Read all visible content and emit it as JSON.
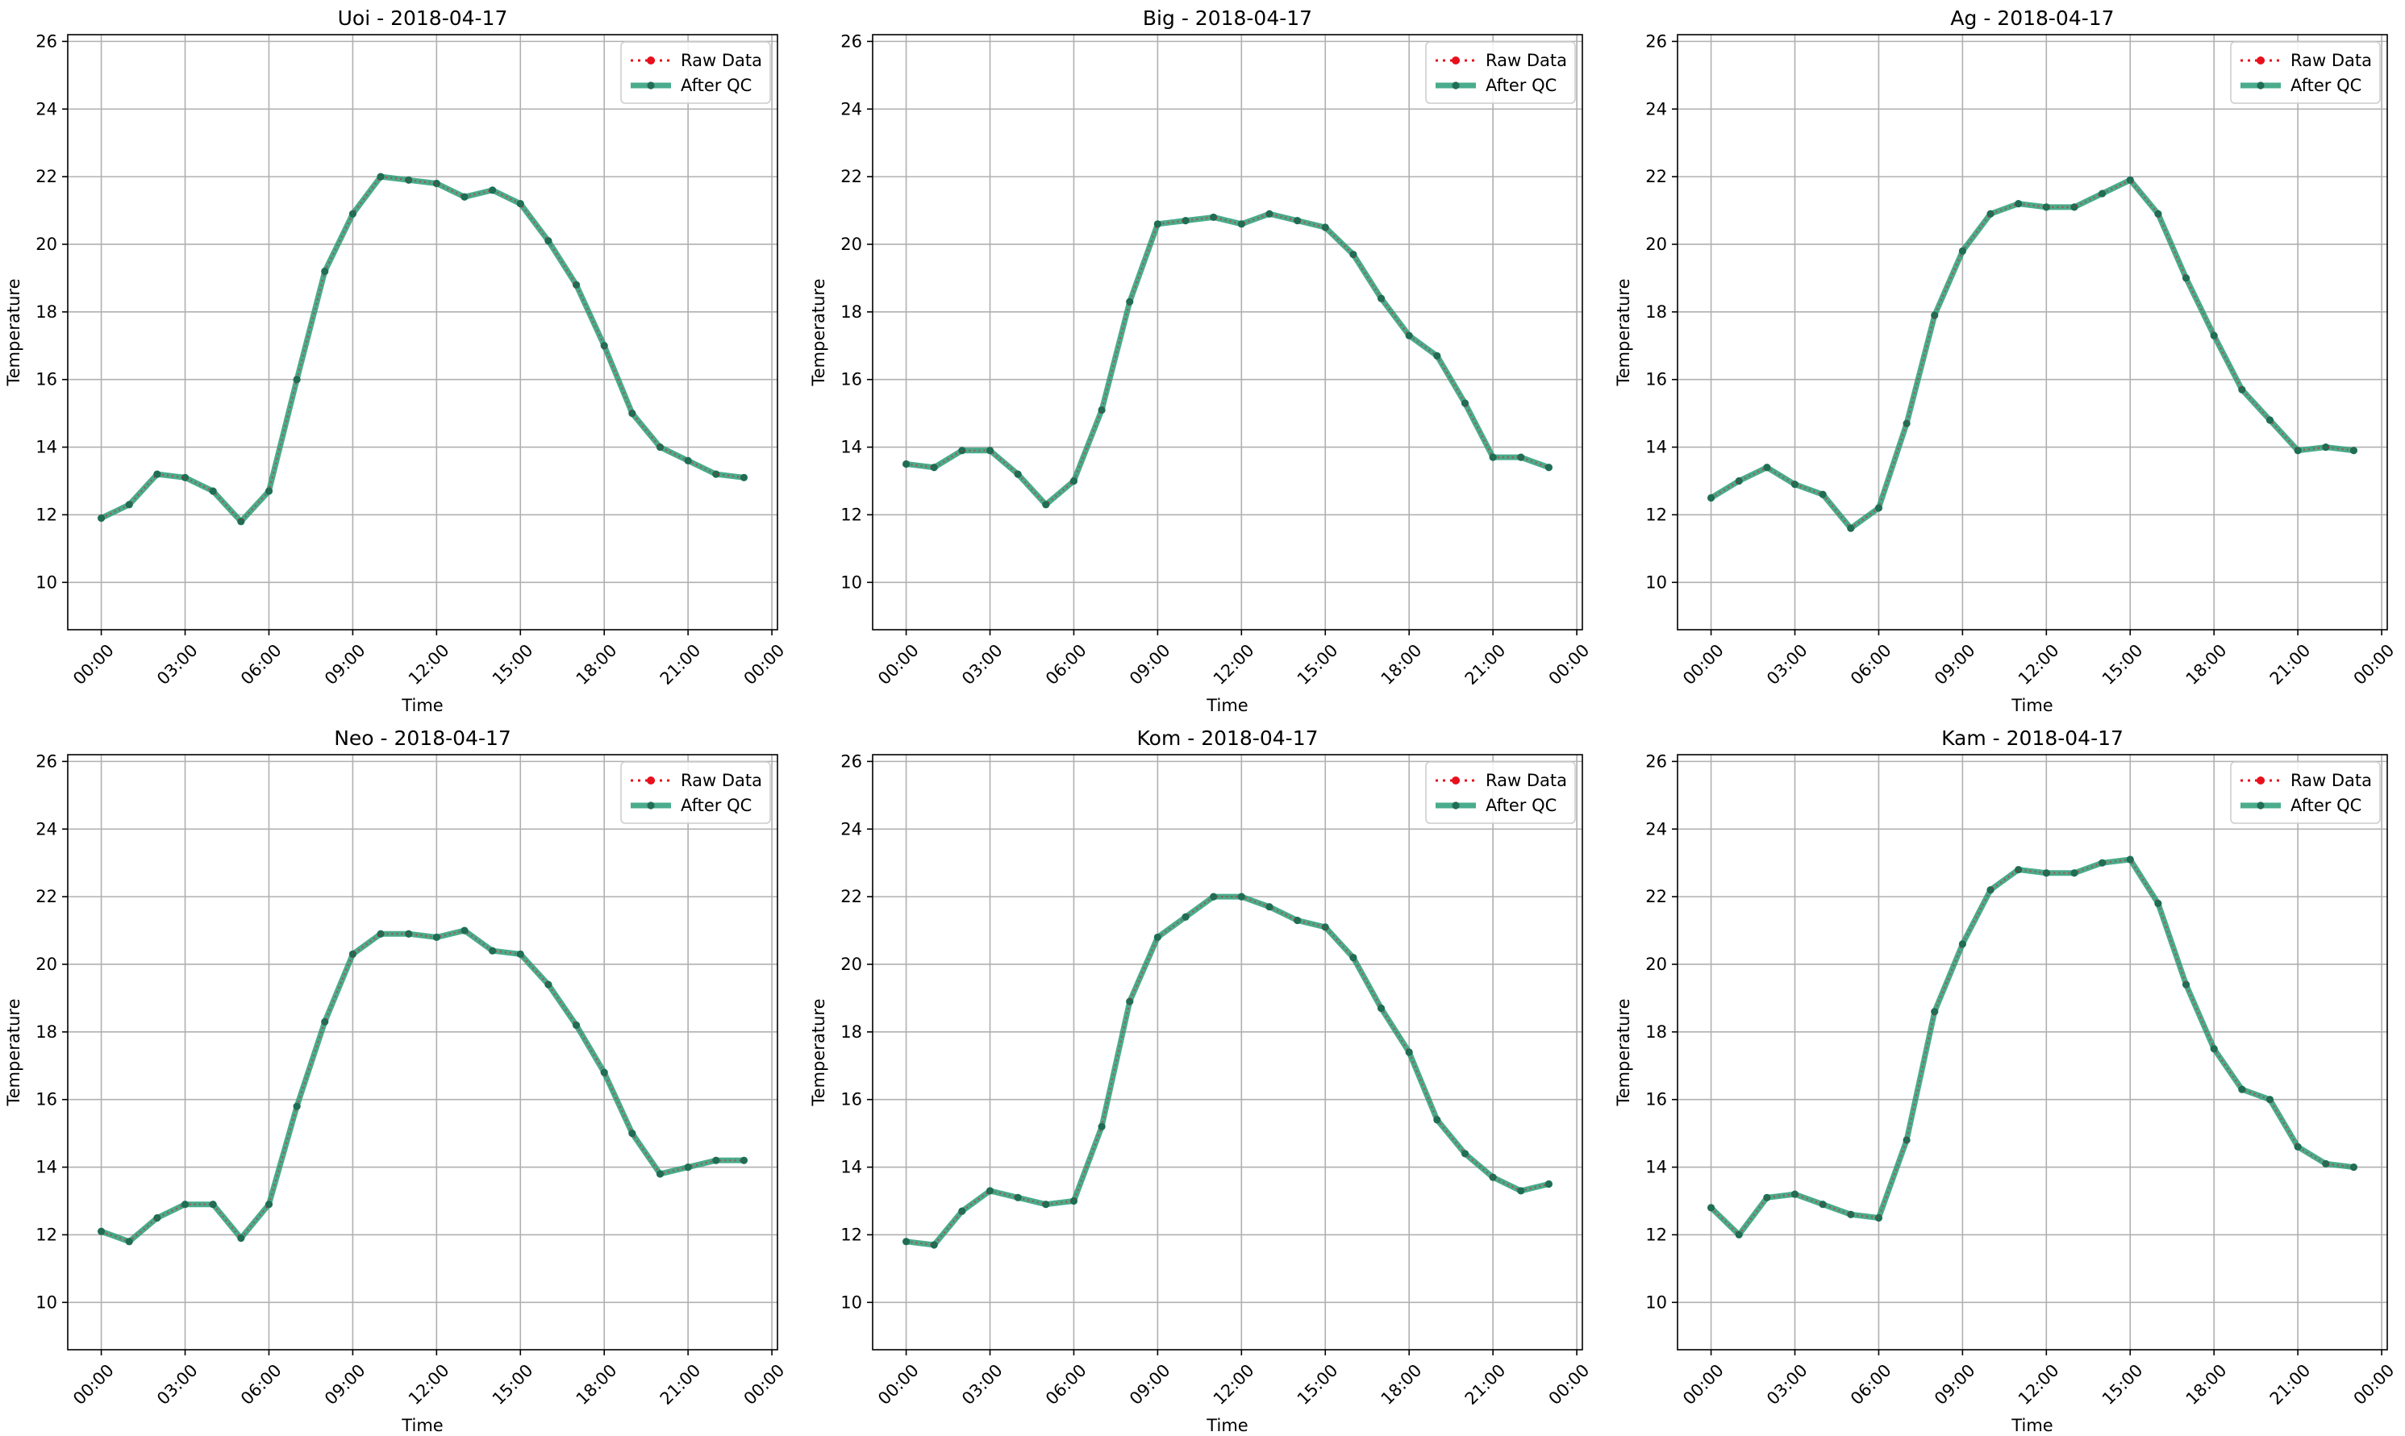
{
  "chart_data": [
    {
      "type": "line",
      "title": "Uoi - 2018-04-17",
      "xlabel": "Time",
      "ylabel": "Temperature",
      "ylim": [
        8.6,
        26.2
      ],
      "yticks": [
        10,
        12,
        14,
        16,
        18,
        20,
        22,
        24,
        26
      ],
      "xlim": [
        -1.2,
        24.2
      ],
      "xticks": [
        0,
        3,
        6,
        9,
        12,
        15,
        18,
        21,
        24
      ],
      "xtick_labels": [
        "00:00",
        "03:00",
        "06:00",
        "09:00",
        "12:00",
        "15:00",
        "18:00",
        "21:00",
        "00:00"
      ],
      "grid": true,
      "legend_position": "top-right",
      "legend": [
        "Raw Data",
        "After QC"
      ],
      "x": [
        "00:00",
        "01:00",
        "02:00",
        "03:00",
        "04:00",
        "05:00",
        "06:00",
        "07:00",
        "08:00",
        "09:00",
        "10:00",
        "11:00",
        "12:00",
        "13:00",
        "14:00",
        "15:00",
        "16:00",
        "17:00",
        "18:00",
        "19:00",
        "20:00",
        "21:00",
        "22:00",
        "23:00"
      ],
      "series": [
        {
          "name": "Raw Data",
          "values": [
            11.9,
            12.3,
            13.2,
            13.1,
            12.7,
            11.8,
            12.7,
            16.0,
            19.2,
            20.9,
            22.0,
            21.9,
            21.8,
            21.4,
            21.6,
            21.2,
            20.1,
            18.8,
            17.0,
            15.0,
            14.0,
            13.6,
            13.2,
            13.1
          ]
        },
        {
          "name": "After QC",
          "values": [
            11.9,
            12.3,
            13.2,
            13.1,
            12.7,
            11.8,
            12.7,
            16.0,
            19.2,
            20.9,
            22.0,
            21.9,
            21.8,
            21.4,
            21.6,
            21.2,
            20.1,
            18.8,
            17.0,
            15.0,
            14.0,
            13.6,
            13.2,
            13.1
          ]
        }
      ]
    },
    {
      "type": "line",
      "title": "Big - 2018-04-17",
      "xlabel": "Time",
      "ylabel": "Temperature",
      "ylim": [
        8.6,
        26.2
      ],
      "yticks": [
        10,
        12,
        14,
        16,
        18,
        20,
        22,
        24,
        26
      ],
      "xlim": [
        -1.2,
        24.2
      ],
      "xticks": [
        0,
        3,
        6,
        9,
        12,
        15,
        18,
        21,
        24
      ],
      "xtick_labels": [
        "00:00",
        "03:00",
        "06:00",
        "09:00",
        "12:00",
        "15:00",
        "18:00",
        "21:00",
        "00:00"
      ],
      "grid": true,
      "legend_position": "top-right",
      "legend": [
        "Raw Data",
        "After QC"
      ],
      "x": [
        "00:00",
        "01:00",
        "02:00",
        "03:00",
        "04:00",
        "05:00",
        "06:00",
        "07:00",
        "08:00",
        "09:00",
        "10:00",
        "11:00",
        "12:00",
        "13:00",
        "14:00",
        "15:00",
        "16:00",
        "17:00",
        "18:00",
        "19:00",
        "20:00",
        "21:00",
        "22:00",
        "23:00"
      ],
      "series": [
        {
          "name": "Raw Data",
          "values": [
            13.5,
            13.4,
            13.9,
            13.9,
            13.2,
            12.3,
            13.0,
            15.1,
            18.3,
            20.6,
            20.7,
            20.8,
            20.6,
            20.9,
            20.7,
            20.5,
            19.7,
            18.4,
            17.3,
            16.7,
            15.3,
            13.7,
            13.7,
            13.4
          ]
        },
        {
          "name": "After QC",
          "values": [
            13.5,
            13.4,
            13.9,
            13.9,
            13.2,
            12.3,
            13.0,
            15.1,
            18.3,
            20.6,
            20.7,
            20.8,
            20.6,
            20.9,
            20.7,
            20.5,
            19.7,
            18.4,
            17.3,
            16.7,
            15.3,
            13.7,
            13.7,
            13.4
          ]
        }
      ]
    },
    {
      "type": "line",
      "title": "Ag - 2018-04-17",
      "xlabel": "Time",
      "ylabel": "Temperature",
      "ylim": [
        8.6,
        26.2
      ],
      "yticks": [
        10,
        12,
        14,
        16,
        18,
        20,
        22,
        24,
        26
      ],
      "xlim": [
        -1.2,
        24.2
      ],
      "xticks": [
        0,
        3,
        6,
        9,
        12,
        15,
        18,
        21,
        24
      ],
      "xtick_labels": [
        "00:00",
        "03:00",
        "06:00",
        "09:00",
        "12:00",
        "15:00",
        "18:00",
        "21:00",
        "00:00"
      ],
      "grid": true,
      "legend_position": "top-right",
      "legend": [
        "Raw Data",
        "After QC"
      ],
      "x": [
        "00:00",
        "01:00",
        "02:00",
        "03:00",
        "04:00",
        "05:00",
        "06:00",
        "07:00",
        "08:00",
        "09:00",
        "10:00",
        "11:00",
        "12:00",
        "13:00",
        "14:00",
        "15:00",
        "16:00",
        "17:00",
        "18:00",
        "19:00",
        "20:00",
        "21:00",
        "22:00",
        "23:00"
      ],
      "series": [
        {
          "name": "Raw Data",
          "values": [
            12.5,
            13.0,
            13.4,
            12.9,
            12.6,
            11.6,
            12.2,
            14.7,
            17.9,
            19.8,
            20.9,
            21.2,
            21.1,
            21.1,
            21.5,
            21.9,
            20.9,
            19.0,
            17.3,
            15.7,
            14.8,
            13.9,
            14.0,
            13.9
          ]
        },
        {
          "name": "After QC",
          "values": [
            12.5,
            13.0,
            13.4,
            12.9,
            12.6,
            11.6,
            12.2,
            14.7,
            17.9,
            19.8,
            20.9,
            21.2,
            21.1,
            21.1,
            21.5,
            21.9,
            20.9,
            19.0,
            17.3,
            15.7,
            14.8,
            13.9,
            14.0,
            13.9
          ]
        }
      ]
    },
    {
      "type": "line",
      "title": "Neo - 2018-04-17",
      "xlabel": "Time",
      "ylabel": "Temperature",
      "ylim": [
        8.6,
        26.2
      ],
      "yticks": [
        10,
        12,
        14,
        16,
        18,
        20,
        22,
        24,
        26
      ],
      "xlim": [
        -1.2,
        24.2
      ],
      "xticks": [
        0,
        3,
        6,
        9,
        12,
        15,
        18,
        21,
        24
      ],
      "xtick_labels": [
        "00:00",
        "03:00",
        "06:00",
        "09:00",
        "12:00",
        "15:00",
        "18:00",
        "21:00",
        "00:00"
      ],
      "grid": true,
      "legend_position": "top-right",
      "legend": [
        "Raw Data",
        "After QC"
      ],
      "x": [
        "00:00",
        "01:00",
        "02:00",
        "03:00",
        "04:00",
        "05:00",
        "06:00",
        "07:00",
        "08:00",
        "09:00",
        "10:00",
        "11:00",
        "12:00",
        "13:00",
        "14:00",
        "15:00",
        "16:00",
        "17:00",
        "18:00",
        "19:00",
        "20:00",
        "21:00",
        "22:00",
        "23:00"
      ],
      "series": [
        {
          "name": "Raw Data",
          "values": [
            12.1,
            11.8,
            12.5,
            12.9,
            12.9,
            11.9,
            12.9,
            15.8,
            18.3,
            20.3,
            20.9,
            20.9,
            20.8,
            21.0,
            20.4,
            20.3,
            19.4,
            18.2,
            16.8,
            15.0,
            13.8,
            14.0,
            14.2,
            14.2
          ]
        },
        {
          "name": "After QC",
          "values": [
            12.1,
            11.8,
            12.5,
            12.9,
            12.9,
            11.9,
            12.9,
            15.8,
            18.3,
            20.3,
            20.9,
            20.9,
            20.8,
            21.0,
            20.4,
            20.3,
            19.4,
            18.2,
            16.8,
            15.0,
            13.8,
            14.0,
            14.2,
            14.2
          ]
        }
      ]
    },
    {
      "type": "line",
      "title": "Kom - 2018-04-17",
      "xlabel": "Time",
      "ylabel": "Temperature",
      "ylim": [
        8.6,
        26.2
      ],
      "yticks": [
        10,
        12,
        14,
        16,
        18,
        20,
        22,
        24,
        26
      ],
      "xlim": [
        -1.2,
        24.2
      ],
      "xticks": [
        0,
        3,
        6,
        9,
        12,
        15,
        18,
        21,
        24
      ],
      "xtick_labels": [
        "00:00",
        "03:00",
        "06:00",
        "09:00",
        "12:00",
        "15:00",
        "18:00",
        "21:00",
        "00:00"
      ],
      "grid": true,
      "legend_position": "top-right",
      "legend": [
        "Raw Data",
        "After QC"
      ],
      "x": [
        "00:00",
        "01:00",
        "02:00",
        "03:00",
        "04:00",
        "05:00",
        "06:00",
        "07:00",
        "08:00",
        "09:00",
        "10:00",
        "11:00",
        "12:00",
        "13:00",
        "14:00",
        "15:00",
        "16:00",
        "17:00",
        "18:00",
        "19:00",
        "20:00",
        "21:00",
        "22:00",
        "23:00"
      ],
      "series": [
        {
          "name": "Raw Data",
          "values": [
            11.8,
            11.7,
            12.7,
            13.3,
            13.1,
            12.9,
            13.0,
            15.2,
            18.9,
            20.8,
            21.4,
            22.0,
            22.0,
            21.7,
            21.3,
            21.1,
            20.2,
            18.7,
            17.4,
            15.4,
            14.4,
            13.7,
            13.3,
            13.5
          ]
        },
        {
          "name": "After QC",
          "values": [
            11.8,
            11.7,
            12.7,
            13.3,
            13.1,
            12.9,
            13.0,
            15.2,
            18.9,
            20.8,
            21.4,
            22.0,
            22.0,
            21.7,
            21.3,
            21.1,
            20.2,
            18.7,
            17.4,
            15.4,
            14.4,
            13.7,
            13.3,
            13.5
          ]
        }
      ]
    },
    {
      "type": "line",
      "title": "Kam - 2018-04-17",
      "xlabel": "Time",
      "ylabel": "Temperature",
      "ylim": [
        8.6,
        26.2
      ],
      "yticks": [
        10,
        12,
        14,
        16,
        18,
        20,
        22,
        24,
        26
      ],
      "xlim": [
        -1.2,
        24.2
      ],
      "xticks": [
        0,
        3,
        6,
        9,
        12,
        15,
        18,
        21,
        24
      ],
      "xtick_labels": [
        "00:00",
        "03:00",
        "06:00",
        "09:00",
        "12:00",
        "15:00",
        "18:00",
        "21:00",
        "00:00"
      ],
      "grid": true,
      "legend_position": "top-right",
      "legend": [
        "Raw Data",
        "After QC"
      ],
      "x": [
        "00:00",
        "01:00",
        "02:00",
        "03:00",
        "04:00",
        "05:00",
        "06:00",
        "07:00",
        "08:00",
        "09:00",
        "10:00",
        "11:00",
        "12:00",
        "13:00",
        "14:00",
        "15:00",
        "16:00",
        "17:00",
        "18:00",
        "19:00",
        "20:00",
        "21:00",
        "22:00",
        "23:00"
      ],
      "series": [
        {
          "name": "Raw Data",
          "values": [
            12.8,
            12.0,
            13.1,
            13.2,
            12.9,
            12.6,
            12.5,
            14.8,
            18.6,
            20.6,
            22.2,
            22.8,
            22.7,
            22.7,
            23.0,
            23.1,
            21.8,
            19.4,
            17.5,
            16.3,
            16.0,
            14.6,
            14.1,
            14.0
          ]
        },
        {
          "name": "After QC",
          "values": [
            12.8,
            12.0,
            13.1,
            13.2,
            12.9,
            12.6,
            12.5,
            14.8,
            18.6,
            20.6,
            22.2,
            22.8,
            22.7,
            22.7,
            23.0,
            23.1,
            21.8,
            19.4,
            17.5,
            16.3,
            16.0,
            14.6,
            14.1,
            14.0
          ]
        }
      ]
    }
  ],
  "colors": {
    "raw": "#e8101c",
    "qc_line": "#2a9d78",
    "qc_marker": "#1f6e55",
    "grid": "#b0b0b0",
    "axes": "#000000"
  }
}
